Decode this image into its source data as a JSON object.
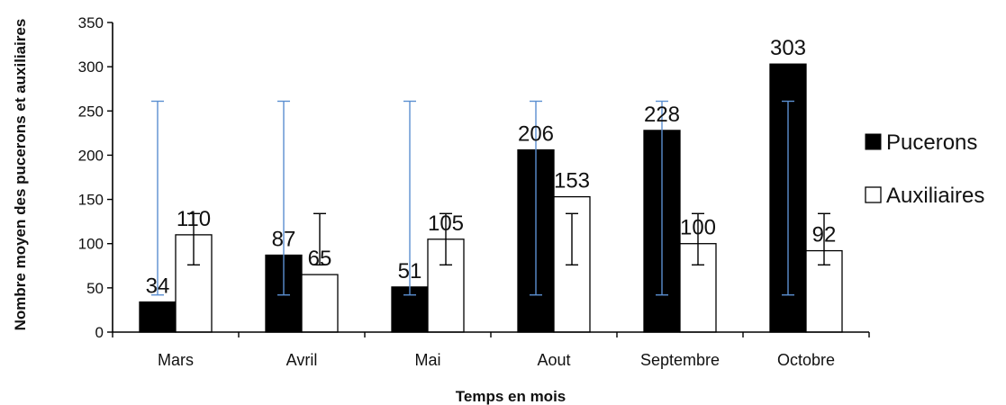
{
  "chart_data": {
    "type": "bar",
    "xlabel": "Temps en mois",
    "ylabel": "Nombre moyen des pucerons et auxiliaires",
    "categories": [
      "Mars",
      "Avril",
      "Mai",
      "Aout",
      "Septembre",
      "Octobre"
    ],
    "ylim": [
      0,
      350
    ],
    "yticks": [
      0,
      50,
      100,
      150,
      200,
      250,
      300,
      350
    ],
    "grid": false,
    "legend_position": "right",
    "series": [
      {
        "name": "Pucerons",
        "color": "#000000",
        "values": [
          34,
          87,
          51,
          206,
          228,
          303
        ],
        "error_low": [
          42,
          42,
          42,
          42,
          42,
          42
        ],
        "error_high": [
          261,
          261,
          261,
          261,
          261,
          261
        ],
        "error_color": "#5b8fd1"
      },
      {
        "name": "Auxiliaires",
        "color": "#ffffff",
        "values": [
          110,
          65,
          105,
          153,
          100,
          92
        ],
        "error_low": [
          76,
          76,
          76,
          76,
          76,
          76
        ],
        "error_high": [
          134,
          134,
          134,
          134,
          134,
          134
        ],
        "error_color": "#000000"
      }
    ]
  }
}
